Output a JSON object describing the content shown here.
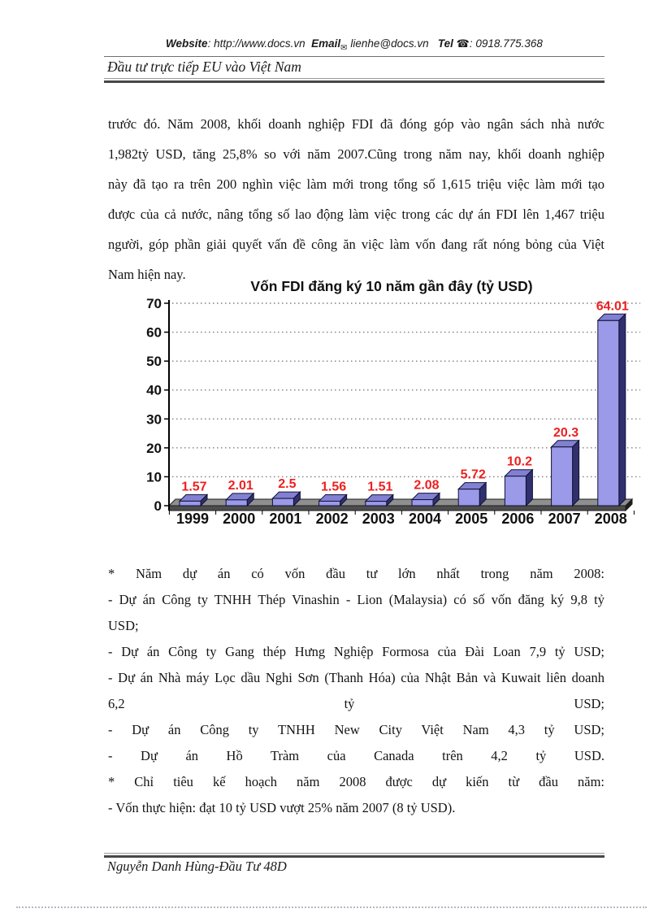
{
  "header": {
    "website_label": "Website",
    "website_value": ": http://www.docs.vn",
    "email_label": "Email",
    "mail_icon": "✉",
    "email_value": "lienhe@docs.vn",
    "tel_label": "Tel",
    "phone_icon": "☎",
    "tel_value": ": 0918.775.368",
    "doc_title": "Đầu tư trực tiếp EU vào Việt Nam"
  },
  "body": {
    "paragraph1": {
      "lines": [
        {
          "t": "trước đó. Năm 2008, khối doanh nghiệp FDI đã đóng góp vào ngân sách nhà nước",
          "j": true
        },
        {
          "t": "1,982tỷ USD, tăng 25,8% so với năm 2007.Cũng trong năm nay, khối doanh nghiệp",
          "j": true
        },
        {
          "t": "này đã tạo ra trên 200 nghìn việc làm mới trong tổng số 1,615 triệu việc làm mới tạo",
          "j": true
        },
        {
          "t": "được của cả nước, nâng tổng số lao động làm việc trong các dự án FDI lên 1,467 triệu",
          "j": true
        },
        {
          "t": "người, góp phần giải quyết vấn đề công ăn việc làm vốn đang rất nóng bỏng của Việt",
          "j": true
        },
        {
          "t": "Nam hiện nay.",
          "j": false
        }
      ]
    },
    "paragraph2": {
      "lines": [
        {
          "t": "* Năm dự án có vốn đầu tư lớn nhất trong năm 2008:",
          "j": true
        },
        {
          "t": "- Dự án Công ty TNHH Thép Vinashin - Lion (Malaysia) có số vốn đăng ký 9,8 tỷ",
          "j": true
        },
        {
          "t": "USD;",
          "j": false
        },
        {
          "t": "- Dự án Công ty Gang thép Hưng Nghiệp Formosa của Đài Loan 7,9 tỷ USD;",
          "j": true
        },
        {
          "t": "- Dự án Nhà máy Lọc dầu Nghi Sơn (Thanh Hóa) của Nhật Bản và Kuwait liên doanh",
          "j": true
        },
        {
          "t": "6,2 tỷ USD;",
          "j": true
        },
        {
          "t": "- Dự án Công ty TNHH New City Việt Nam 4,3 tỷ USD;",
          "j": true
        },
        {
          "t": "- Dự án Hồ Tràm của Canada trên 4,2 tỷ USD.",
          "j": true
        },
        {
          "t": "* Chỉ tiêu kế hoạch năm 2008 được dự kiến từ đầu năm:",
          "j": true
        },
        {
          "t": "- Vốn thực hiện: đạt 10 tỷ USD vượt 25% năm 2007 (8 tỷ USD).",
          "j": false
        }
      ]
    }
  },
  "chart_data": {
    "type": "bar",
    "title": "Vốn FDI đăng ký 10 năm gần đây (tỷ USD)",
    "categories": [
      "1999",
      "2000",
      "2001",
      "2002",
      "2003",
      "2004",
      "2005",
      "2006",
      "2007",
      "2008"
    ],
    "values": [
      1.57,
      2.01,
      2.5,
      1.56,
      1.51,
      2.08,
      5.72,
      10.2,
      20.3,
      64.01
    ],
    "xlabel": "",
    "ylabel": "",
    "ylim": [
      0,
      70
    ],
    "ytick_step": 10,
    "grid": "horizontal-dotted",
    "legend": "none",
    "style_3d": true,
    "colors": {
      "bar_front": "#9b9ae8",
      "bar_top": "#8280d2",
      "bar_side": "#31306e",
      "bar_outline": "#101035",
      "floor_top": "#8f8f8f",
      "floor_front": "#4d4d4d",
      "floor_outline": "#1e1e1e",
      "grid": "#7f7f7f",
      "axis": "#000000",
      "value_label": "#ee2020"
    }
  },
  "footer": {
    "text": "Nguyễn Danh Hùng-Đầu Tư 48D"
  }
}
